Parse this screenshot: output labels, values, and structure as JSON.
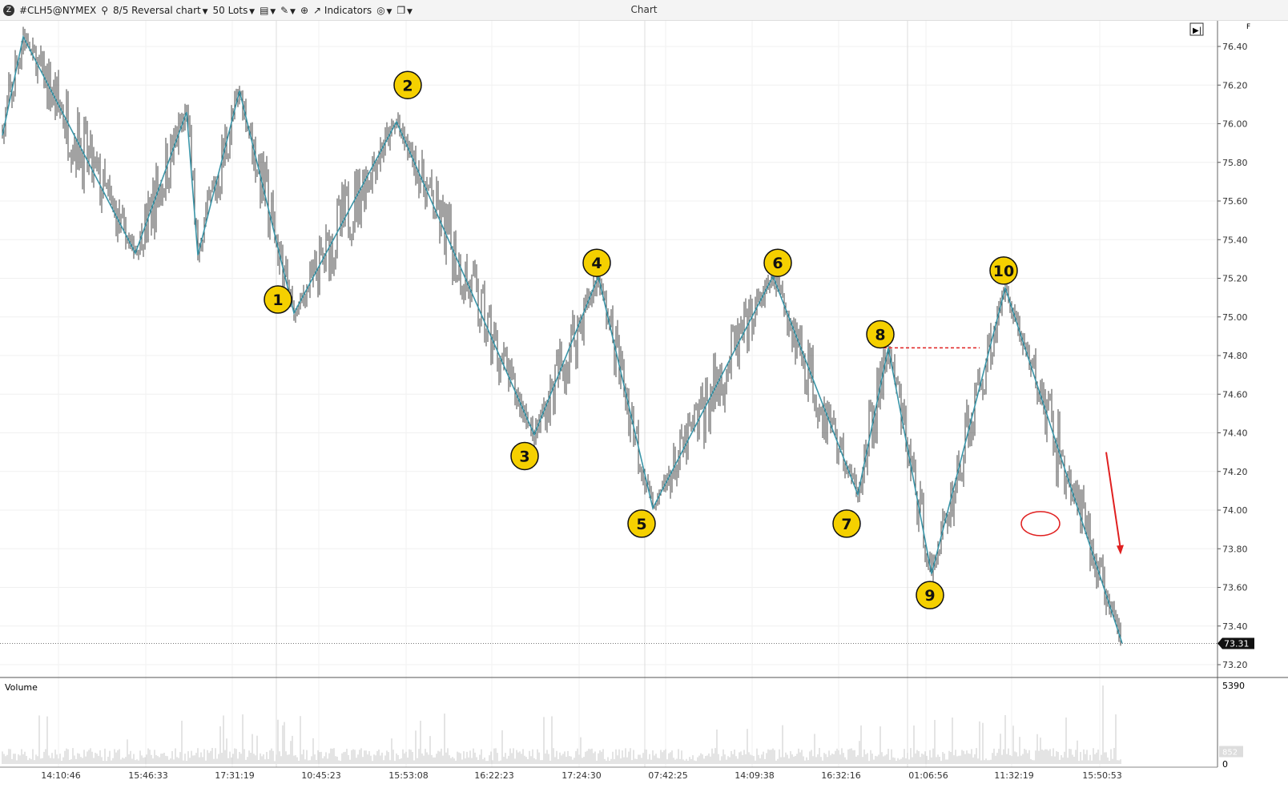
{
  "toolbar": {
    "logo": "logo-icon",
    "symbol": "#CLH5@NYMEX",
    "chart_type": "8/5 Reversal chart",
    "lots": "50 Lots",
    "indicators": "Indicators",
    "title": "Chart"
  },
  "price_axis": {
    "ticks": [
      "76.40",
      "76.20",
      "76.00",
      "75.80",
      "75.60",
      "75.40",
      "75.20",
      "75.00",
      "74.80",
      "74.60",
      "74.40",
      "74.20",
      "74.00",
      "73.80",
      "73.60",
      "73.40",
      "73.20"
    ],
    "current_price": "73.31",
    "min": 73.2,
    "max": 76.4
  },
  "volume": {
    "label": "Volume",
    "max_label": "5390",
    "zero_label": "0",
    "current_label": "852",
    "max": 5390,
    "current": 852
  },
  "time_axis": {
    "labels": [
      "14:10:46",
      "15:46:33",
      "17:31:19",
      "10:45:23",
      "15:53:08",
      "16:22:23",
      "17:24:30",
      "07:42:25",
      "14:09:38",
      "16:32:16",
      "01:06:56",
      "11:32:19",
      "15:50:53"
    ]
  },
  "chart_data": {
    "type": "candlestick",
    "bars": 700,
    "zigzag": [
      [
        0,
        75.94
      ],
      [
        13,
        76.45
      ],
      [
        83,
        75.33
      ],
      [
        115,
        76.06
      ],
      [
        122,
        75.32
      ],
      [
        148,
        76.17
      ],
      [
        182,
        75.02
      ],
      [
        246,
        76.01
      ],
      [
        332,
        74.39
      ],
      [
        372,
        75.21
      ],
      [
        406,
        74.01
      ],
      [
        481,
        75.21
      ],
      [
        534,
        74.08
      ],
      [
        553,
        74.84
      ],
      [
        580,
        73.67
      ],
      [
        626,
        75.15
      ],
      [
        699,
        73.31
      ]
    ],
    "labels": [
      {
        "text": "1",
        "bar": 172,
        "price": 75.09
      },
      {
        "text": "2",
        "bar": 253,
        "price": 76.2
      },
      {
        "text": "3",
        "bar": 326,
        "price": 74.28
      },
      {
        "text": "4",
        "bar": 371,
        "price": 75.28
      },
      {
        "text": "5",
        "bar": 399,
        "price": 73.93
      },
      {
        "text": "6",
        "bar": 484,
        "price": 75.28
      },
      {
        "text": "7",
        "bar": 527,
        "price": 73.93
      },
      {
        "text": "8",
        "bar": 548,
        "price": 74.91
      },
      {
        "text": "9",
        "bar": 579,
        "price": 73.56
      },
      {
        "text": "10",
        "bar": 625,
        "price": 75.24
      }
    ],
    "colors": {
      "zigzag": "#3a95a8",
      "candle": "#222222",
      "label_fill": "#f5d000",
      "annotation": "#e02020",
      "volume": "#c8c8c8"
    },
    "annotations": {
      "dashed_level": {
        "price": 74.84,
        "from_bar": 550,
        "to_bar": 610
      },
      "ellipse": {
        "bar": 648,
        "price": 73.93
      },
      "arrow": {
        "from": [
          689,
          74.3
        ],
        "to": [
          698,
          73.77
        ]
      }
    }
  }
}
